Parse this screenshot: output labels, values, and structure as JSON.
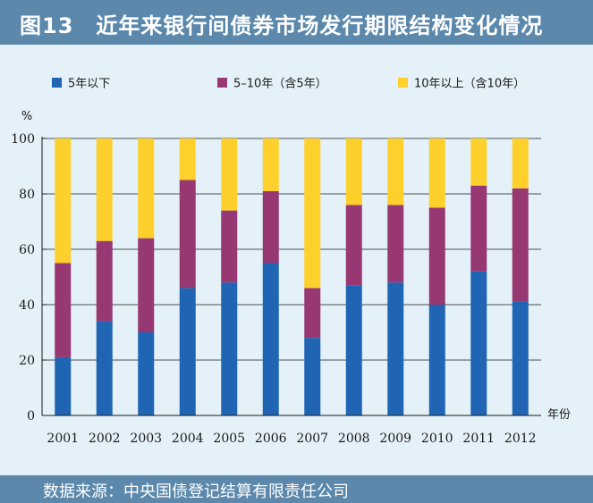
{
  "title": "图13　近年来银行间债券市场发行期限结构变化情况",
  "source": "数据来源：中央国债登记结算有限责任公司",
  "colors": {
    "header": "#5b88ab",
    "background": "#e4f1f8"
  },
  "chart_data": {
    "type": "bar",
    "stacked": true,
    "ylabel": "%",
    "xlabel": "年份",
    "ylim": [
      0,
      100
    ],
    "yticks": [
      0,
      20,
      40,
      60,
      80,
      100
    ],
    "grid": true,
    "legend": "top",
    "categories": [
      "2001",
      "2002",
      "2003",
      "2004",
      "2005",
      "2006",
      "2007",
      "2008",
      "2009",
      "2010",
      "2011",
      "2012"
    ],
    "series": [
      {
        "name": "5年以下",
        "color": "#1f65b3",
        "values": [
          21,
          34,
          30,
          46,
          48,
          55,
          28,
          47,
          48,
          40,
          52,
          41
        ]
      },
      {
        "name": "5–10年（含5年）",
        "color": "#983872",
        "values": [
          34,
          29,
          34,
          39,
          26,
          26,
          18,
          29,
          28,
          35,
          31,
          41
        ]
      },
      {
        "name": "10年以上（含10年）",
        "color": "#fed02b",
        "values": [
          45,
          37,
          36,
          15,
          26,
          19,
          54,
          24,
          24,
          25,
          17,
          18
        ]
      }
    ]
  }
}
